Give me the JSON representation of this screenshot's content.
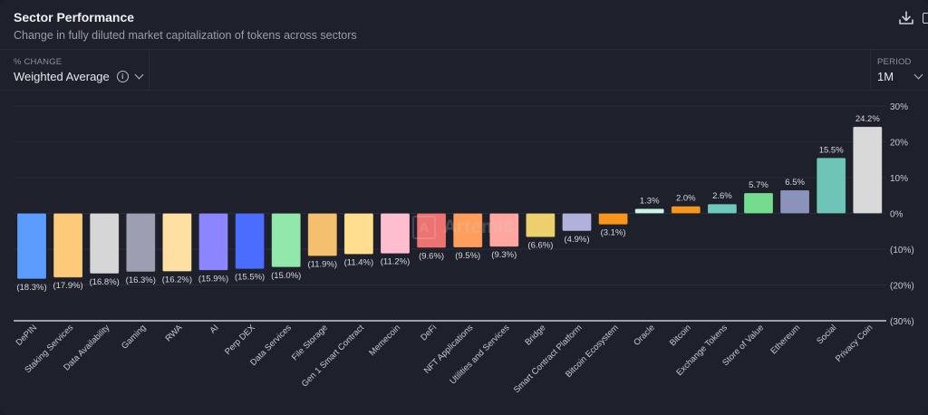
{
  "header": {
    "title": "Sector Performance",
    "subtitle": "Change in fully diluted market capitalization of tokens across sectors",
    "download_icon": "download-icon"
  },
  "controls": {
    "metric_label": "% CHANGE",
    "metric_value": "Weighted Average",
    "info_icon": "info-icon",
    "period_label": "PERIOD",
    "period_value": "1M"
  },
  "watermark": {
    "icon": "A",
    "text": "Artemis"
  },
  "chart_data": {
    "type": "bar",
    "title": "Sector Performance",
    "subtitle": "Change in fully diluted market capitalization of tokens across sectors",
    "xlabel": "",
    "ylabel": "% Change",
    "ylim": [
      -30,
      30
    ],
    "yticks": [
      30,
      20,
      10,
      0,
      -10,
      -20,
      -30
    ],
    "ytick_labels": [
      "30%",
      "20%",
      "10%",
      "0%",
      "(10%)",
      "(20%)",
      "(30%)"
    ],
    "y_axis_position": "right",
    "grid": true,
    "legend": "none",
    "categories": [
      "DePIN",
      "Staking Services",
      "Data Availability",
      "Gaming",
      "RWA",
      "AI",
      "Perp DEX",
      "Data Services",
      "File Storage",
      "Gen 1 Smart Contract",
      "Memecoin",
      "DeFi",
      "NFT Applications",
      "Utilities and Services",
      "Bridge",
      "Smart Contract Platform",
      "Bitcoin Ecosystem",
      "Oracle",
      "Bitcoin",
      "Exchange Tokens",
      "Store of Value",
      "Ethereum",
      "Social",
      "Privacy Coin"
    ],
    "values": [
      -18.3,
      -17.9,
      -16.8,
      -16.3,
      -16.2,
      -15.9,
      -15.5,
      -15.0,
      -11.9,
      -11.4,
      -11.2,
      -9.6,
      -9.5,
      -9.3,
      -6.6,
      -4.9,
      -3.1,
      1.3,
      2.0,
      2.6,
      5.7,
      6.5,
      15.5,
      24.2
    ],
    "labels": [
      "(18.3%)",
      "(17.9%)",
      "(16.8%)",
      "(16.3%)",
      "(16.2%)",
      "(15.9%)",
      "(15.5%)",
      "(15.0%)",
      "(11.9%)",
      "(11.4%)",
      "(11.2%)",
      "(9.6%)",
      "(9.5%)",
      "(9.3%)",
      "(6.6%)",
      "(4.9%)",
      "(3.1%)",
      "1.3%",
      "2.0%",
      "2.6%",
      "5.7%",
      "6.5%",
      "15.5%",
      "24.2%"
    ],
    "colors": [
      "#5b9dff",
      "#fccb79",
      "#d6d6d6",
      "#9d9eb2",
      "#ffe0a3",
      "#8b86ff",
      "#4a6cff",
      "#92e8aa",
      "#f4bf6f",
      "#ffde8f",
      "#ffbdd0",
      "#ef7272",
      "#ff9d5c",
      "#ffa6a0",
      "#ecd06d",
      "#b1b2dc",
      "#f7951d",
      "#c8f5e4",
      "#f7951d",
      "#6ec9bd",
      "#74dc8e",
      "#8c93ba",
      "#6ec4b6",
      "#d9d9d9"
    ]
  }
}
